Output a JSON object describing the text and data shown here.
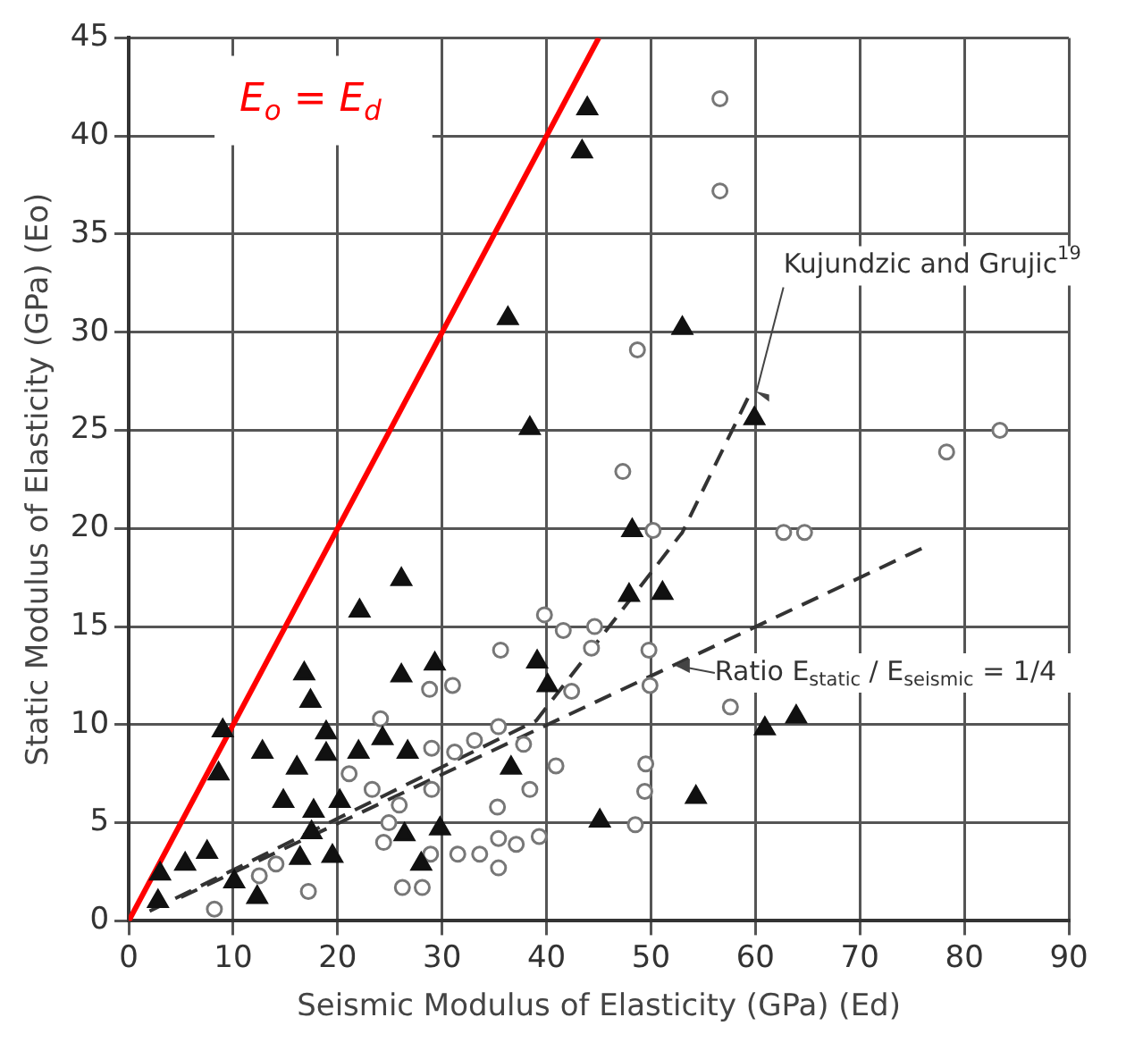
{
  "chart_data": {
    "type": "scatter",
    "xlabel": "Seismic Modulus of Elasticity (GPa) (Ed)",
    "ylabel": "Static Modulus of Elasticity (GPa) (Eo)",
    "xlim": [
      0,
      90
    ],
    "ylim": [
      0,
      45
    ],
    "xticks": [
      0,
      10,
      20,
      30,
      40,
      50,
      60,
      70,
      80,
      90
    ],
    "yticks": [
      0,
      5,
      10,
      15,
      20,
      25,
      30,
      35,
      40,
      45
    ],
    "grid": true,
    "annotations": [
      "E$_{o}$ = E$_{d}$",
      {
        "text": "Kujundzic and Grujic$^{19}$",
        "x": 59.6,
        "y": 27
      },
      {
        "text": "Ratio E$_{static}$ / E$_{seismic}$ = 1/4",
        "x": 52,
        "y": 13
      }
    ],
    "series": [
      {
        "type": "scatter",
        "marker": "triangle",
        "color": "#111111",
        "x": [
          26.1,
          22.1,
          16.8,
          17.4,
          26.1,
          29.3,
          9.0,
          8.6,
          18.9,
          18.9,
          12.8,
          16.1,
          22.0,
          24.3,
          26.7,
          36.6,
          14.8,
          17.7,
          20.2,
          17.5,
          26.4,
          29.8,
          7.5,
          5.4,
          3.0,
          10.1,
          12.3,
          16.4,
          19.5,
          28.0,
          2.8,
          43.9,
          43.4,
          36.3,
          53.0,
          38.4,
          59.9,
          48.2,
          47.9,
          51.1,
          39.1,
          40.1,
          60.9,
          63.9,
          54.3,
          45.1
        ],
        "values": [
          17.4,
          15.8,
          12.6,
          11.2,
          12.5,
          13.1,
          9.7,
          7.5,
          9.6,
          8.5,
          8.6,
          7.8,
          8.6,
          9.3,
          8.6,
          7.8,
          6.1,
          5.6,
          6.1,
          4.5,
          4.4,
          4.7,
          3.5,
          2.9,
          2.4,
          2.0,
          1.2,
          3.2,
          3.3,
          2.9,
          1.0,
          41.4,
          39.2,
          30.7,
          30.2,
          25.1,
          25.6,
          19.9,
          16.6,
          16.7,
          13.2,
          12.0,
          9.8,
          10.4,
          6.3,
          5.1
        ]
      },
      {
        "type": "scatter",
        "marker": "circle",
        "color": "#777777",
        "x": [
          56.6,
          56.6,
          48.7,
          47.3,
          78.3,
          83.4,
          50.2,
          62.7,
          64.7,
          39.8,
          41.6,
          44.6,
          44.3,
          35.6,
          49.8,
          42.4,
          49.9,
          57.6,
          35.4,
          37.8,
          40.9,
          38.4,
          35.3,
          49.5,
          49.4,
          35.4,
          37.1,
          39.3,
          33.6,
          35.4,
          48.5,
          28.8,
          31.0,
          24.1,
          33.1,
          31.2,
          29.0,
          21.1,
          23.3,
          29.0,
          25.9,
          24.9,
          24.4,
          28.9,
          31.5,
          26.2,
          28.1,
          17.2,
          12.5,
          14.1,
          8.2
        ],
        "values": [
          41.9,
          37.2,
          29.1,
          22.9,
          23.9,
          25.0,
          19.9,
          19.8,
          19.8,
          15.6,
          14.8,
          15.0,
          13.9,
          13.8,
          13.8,
          11.7,
          12.0,
          10.9,
          9.9,
          9.0,
          7.9,
          6.7,
          5.8,
          8.0,
          6.6,
          4.2,
          3.9,
          4.3,
          3.4,
          2.7,
          4.9,
          11.8,
          12.0,
          10.3,
          9.2,
          8.6,
          8.8,
          7.5,
          6.7,
          6.7,
          5.9,
          5.0,
          4.0,
          3.4,
          3.4,
          1.7,
          1.7,
          1.5,
          2.3,
          2.9,
          0.6
        ]
      },
      {
        "type": "line",
        "marker": "none",
        "line_style": "dashed",
        "color": "#333333",
        "x": [
          2,
          39,
          53,
          59.6
        ],
        "values": [
          0.5,
          10.2,
          19.8,
          27
        ]
      },
      {
        "type": "line",
        "marker": "none",
        "line_style": "dashed",
        "color": "#333333",
        "x": [
          5,
          76
        ],
        "values": [
          1.2,
          19
        ]
      },
      {
        "type": "line",
        "marker": "none",
        "line_style": "solid",
        "color": "#ff0000",
        "x": [
          0,
          45
        ],
        "values": [
          0,
          45
        ]
      }
    ]
  }
}
